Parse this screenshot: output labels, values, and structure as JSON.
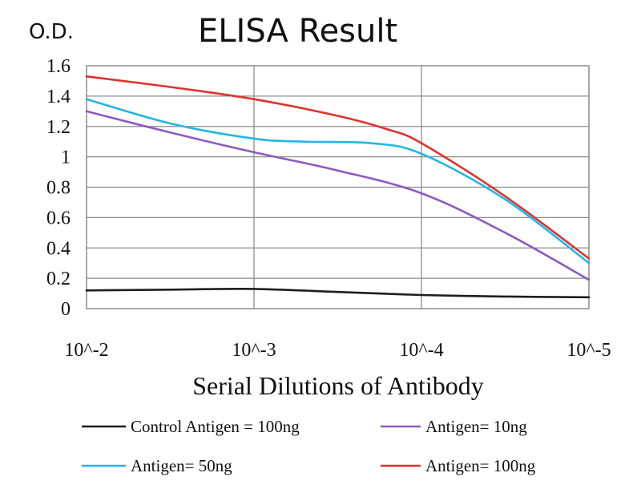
{
  "chart_data": {
    "type": "line",
    "title": "ELISA Result",
    "ylabel": "O.D.",
    "xlabel": "Serial Dilutions of Antibody",
    "categories": [
      "10^-2",
      "10^-3",
      "10^-4",
      "10^-5"
    ],
    "ylim": [
      0,
      1.6
    ],
    "yticks": [
      "0",
      "0.2",
      "0.4",
      "0.6",
      "0.8",
      "1",
      "1.2",
      "1.4",
      "1.6"
    ],
    "grid": true,
    "legend_position": "bottom",
    "series": [
      {
        "name": "Control Antigen = 100ng",
        "color": "#1e1e1e",
        "x": [
          0,
          0.5,
          1,
          1.5,
          2,
          2.5,
          3
        ],
        "values": [
          0.12,
          0.125,
          0.13,
          0.11,
          0.09,
          0.08,
          0.075
        ]
      },
      {
        "name": "Antigen= 10ng",
        "color": "#8e59c2",
        "x": [
          0,
          0.5,
          1,
          1.5,
          2,
          2.5,
          3
        ],
        "values": [
          1.3,
          1.16,
          1.03,
          0.91,
          0.76,
          0.5,
          0.19
        ]
      },
      {
        "name": "Antigen= 50ng",
        "color": "#22b6e6",
        "x": [
          0,
          0.5,
          1,
          1.3,
          1.7,
          2,
          2.5,
          3
        ],
        "values": [
          1.38,
          1.22,
          1.12,
          1.1,
          1.09,
          1.02,
          0.72,
          0.3
        ]
      },
      {
        "name": "Antigen= 100ng",
        "color": "#e2312b",
        "x": [
          0,
          0.5,
          1,
          1.5,
          1.8,
          2,
          2.5,
          3
        ],
        "values": [
          1.53,
          1.46,
          1.38,
          1.27,
          1.18,
          1.09,
          0.74,
          0.33
        ]
      }
    ]
  }
}
